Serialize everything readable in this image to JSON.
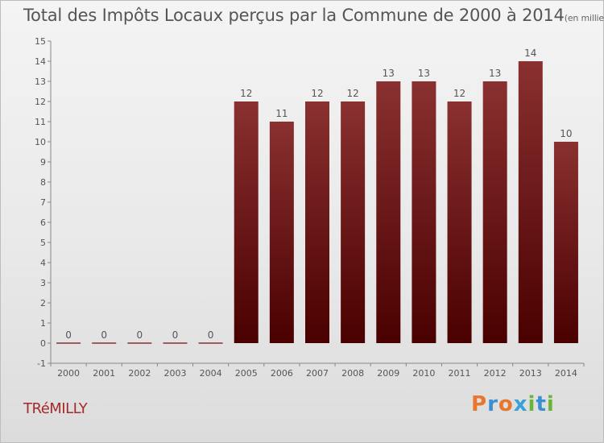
{
  "title": "Total des Impôts Locaux perçus par la Commune de 2000 à 2014",
  "subtitle": "(en milliers d'€)",
  "commune": "TRéMILLY",
  "logo": {
    "letters": [
      "P",
      "r",
      "o",
      "x",
      "i",
      "t",
      "i"
    ],
    "colors": [
      "#e8762c",
      "#3a8fd0",
      "#e8762c",
      "#3aa0d8",
      "#6ab43a",
      "#3a8fd0",
      "#6ab43a"
    ]
  },
  "colors": {
    "bar_top": "#8a3030",
    "bar_bottom": "#4a0000"
  },
  "chart_data": {
    "type": "bar",
    "categories": [
      "2000",
      "2001",
      "2002",
      "2003",
      "2004",
      "2005",
      "2006",
      "2007",
      "2008",
      "2009",
      "2010",
      "2011",
      "2012",
      "2013",
      "2014"
    ],
    "values": [
      0,
      0,
      0,
      0,
      0,
      12,
      11,
      12,
      12,
      13,
      13,
      12,
      13,
      14,
      10
    ],
    "title": "Total des Impôts Locaux perçus par la Commune de 2000 à 2014",
    "xlabel": "",
    "ylabel": "",
    "ylim": [
      -1,
      15
    ],
    "yticks": [
      -1,
      0,
      1,
      2,
      3,
      4,
      5,
      6,
      7,
      8,
      9,
      10,
      11,
      12,
      13,
      14,
      15
    ],
    "grid": false
  }
}
